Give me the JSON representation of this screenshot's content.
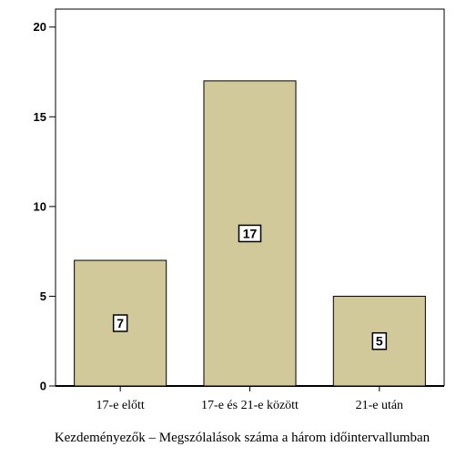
{
  "chart_data": {
    "type": "bar",
    "categories": [
      "17-e előtt",
      "17-e és 21-e között",
      "21-e után"
    ],
    "values": [
      7,
      17,
      5
    ],
    "data_labels": [
      "7",
      "17",
      "5"
    ],
    "title": "",
    "xlabel": "Kezdeményezők – Megszólalások száma a három időintervallumban",
    "ylabel": "",
    "ylim": [
      0,
      21
    ],
    "yticks": [
      0,
      5,
      10,
      15,
      20
    ],
    "grid": false,
    "bar_color": "#d2c99a",
    "bar_edge_color": "#000000"
  }
}
